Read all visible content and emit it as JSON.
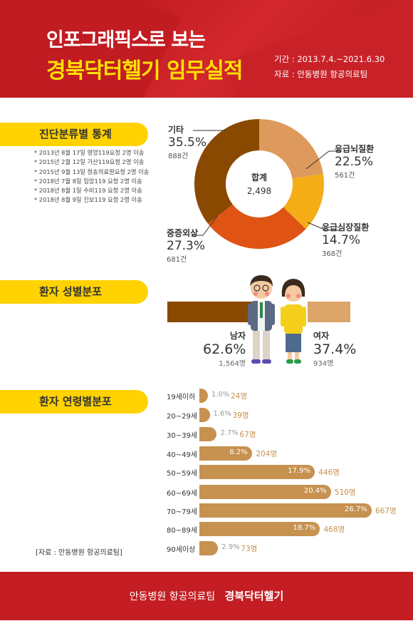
{
  "header": {
    "title1": "인포그래픽스로 보는",
    "title2": "경북닥터헬기 임무실적",
    "period": "기간 : 2013.7.4.~2021.6.30",
    "source": "자료 : 안동병원 항공의료팀"
  },
  "sections": {
    "diagnosis": "진단분류별 통계",
    "gender": "환자 성별분포",
    "age": "환자 연령별분포"
  },
  "notes": [
    "* 2013년 8월 17일 영양119요청 2명 이송",
    "* 2015년 2월 12일 가산119요청 2명 이송",
    "* 2015년 9월 13일 청송의료원요청 2명 이송",
    "* 2018년 7월 8일 입암119 요청 2명 이송",
    "* 2018년 8월 1일 수비119 요청 2명 이송",
    "* 2018년 8월 9일 진보119 요청 2명 이송"
  ],
  "colors": {
    "red": "#c41d24",
    "yellow": "#ffd200",
    "brown": "#8a4900",
    "tan": "#c79150"
  },
  "chart_data": [
    {
      "type": "pie",
      "center_title": "합계",
      "center_value": "2,498",
      "slices": [
        {
          "name": "응급뇌질환",
          "percent": 22.5,
          "count": 561,
          "percent_label": "22.5%",
          "count_label": "561건",
          "color": "#dd9a5c"
        },
        {
          "name": "응급심장질환",
          "percent": 14.7,
          "count": 368,
          "percent_label": "14.7%",
          "count_label": "368건",
          "color": "#f5ad16"
        },
        {
          "name": "중증외상",
          "percent": 27.3,
          "count": 681,
          "percent_label": "27.3%",
          "count_label": "681건",
          "color": "#df5314"
        },
        {
          "name": "기타",
          "percent": 35.5,
          "count": 888,
          "percent_label": "35.5%",
          "count_label": "888건",
          "color": "#8a4900"
        }
      ]
    },
    {
      "type": "bar",
      "categories": [
        "남자",
        "여자"
      ],
      "values": [
        62.6,
        37.4
      ],
      "pct_labels": [
        "62.6%",
        "37.4%"
      ],
      "count_labels": [
        "1,564명",
        "934명"
      ]
    },
    {
      "type": "bar",
      "categories": [
        "19세이하",
        "20~29세",
        "30~39세",
        "40~49세",
        "50~59세",
        "60~69세",
        "70~79세",
        "80~89세",
        "90세이상"
      ],
      "values": [
        1.0,
        1.6,
        2.7,
        8.2,
        17.9,
        20.4,
        26.7,
        18.7,
        2.9
      ],
      "pct_labels": [
        "1.0%",
        "1.6%",
        "2.7%",
        "8.2%",
        "17.9%",
        "20.4%",
        "26.7%",
        "18.7%",
        "2.9%"
      ],
      "count_labels": [
        "24명",
        "39명",
        "67명",
        "204명",
        "446명",
        "510명",
        "667명",
        "468명",
        "73명"
      ]
    }
  ],
  "source_note": "[자료 : 안동병원 항공의료팀]",
  "footer": {
    "org": "안동병원 항공의료팀",
    "brand": "경북닥터헬기"
  }
}
